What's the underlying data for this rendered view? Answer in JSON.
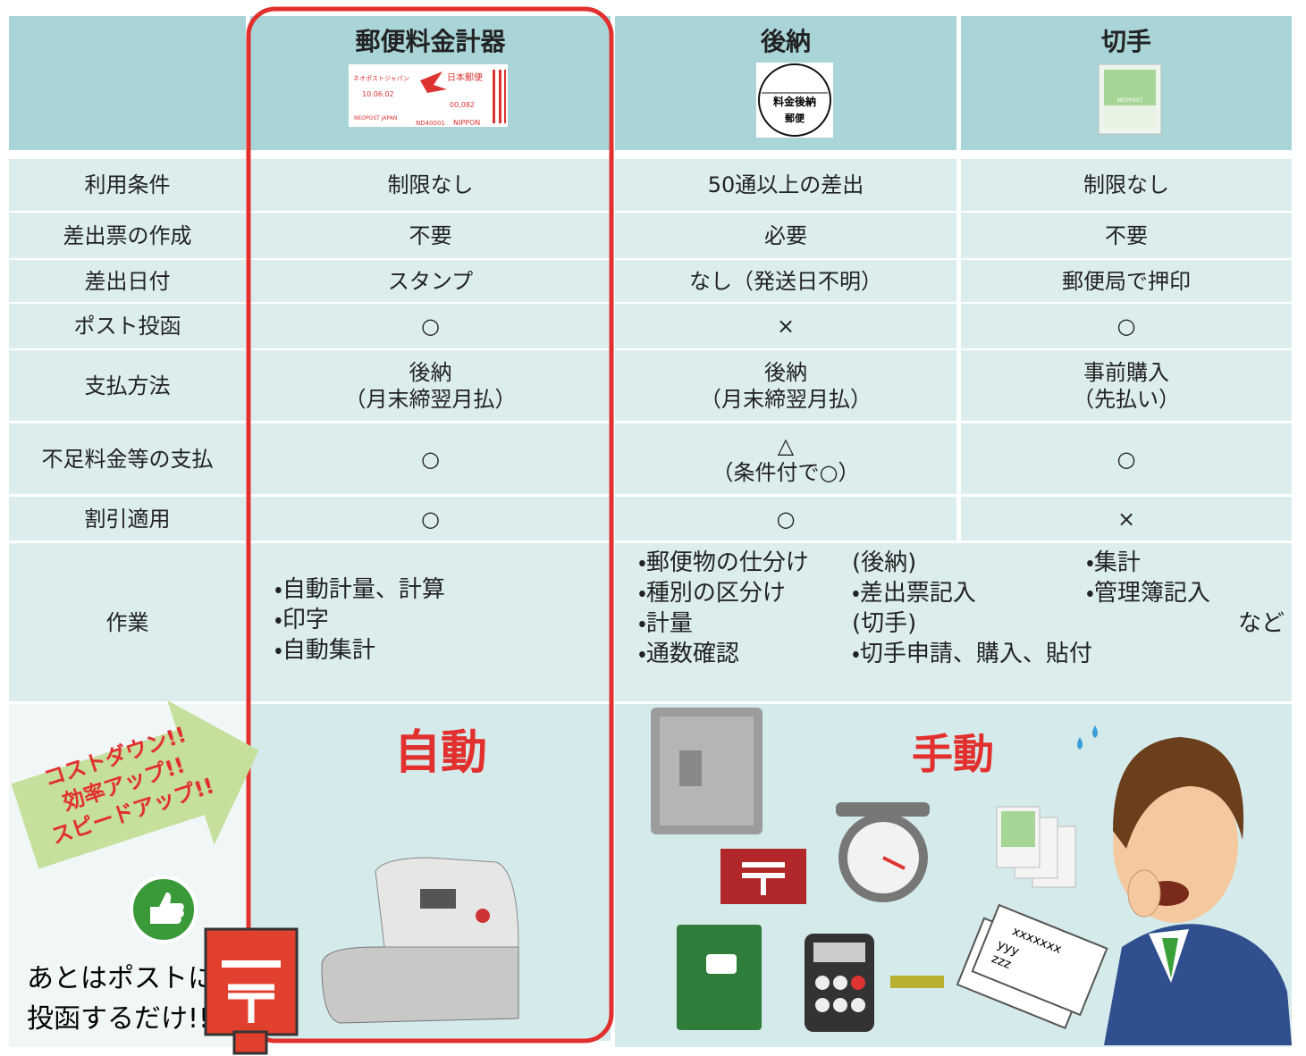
{
  "header": {
    "columns": [
      "郵便料金計器",
      "後納",
      "切手"
    ],
    "meter_stamp": [
      "ネオポストジャパン",
      "10.06.02",
      "日本郵便",
      "00,082",
      "NEOPOST JAPAN",
      "ND40001",
      "NIPPON"
    ],
    "gonou_stamp": [
      "料金後納",
      "郵便"
    ],
    "stamp_brand": "NEOPOST"
  },
  "table": {
    "rows": [
      {
        "label": "利用条件",
        "cells": [
          [
            "制限なし"
          ],
          [
            "50通以上の差出"
          ],
          [
            "制限なし"
          ]
        ]
      },
      {
        "label": "差出票の作成",
        "cells": [
          [
            "不要"
          ],
          [
            "必要"
          ],
          [
            "不要"
          ]
        ]
      },
      {
        "label": "差出日付",
        "cells": [
          [
            "スタンプ"
          ],
          [
            "なし（発送日不明）"
          ],
          [
            "郵便局で押印"
          ]
        ]
      },
      {
        "label": "ポスト投函",
        "cells": [
          [
            "○"
          ],
          [
            "×"
          ],
          [
            "○"
          ]
        ]
      },
      {
        "label": "支払方法",
        "cells": [
          [
            "後納",
            "（月末締翌月払）"
          ],
          [
            "後納",
            "（月末締翌月払）"
          ],
          [
            "事前購入",
            "（先払い）"
          ]
        ]
      },
      {
        "label": "不足料金等の支払",
        "cells": [
          [
            "○"
          ],
          [
            "△",
            "（条件付で○）"
          ],
          [
            "○"
          ]
        ]
      },
      {
        "label": "割引適用",
        "cells": [
          [
            "○"
          ],
          [
            "○"
          ],
          [
            "×"
          ]
        ]
      }
    ]
  },
  "work": {
    "label": "作業",
    "meter": [
      "・自動計量、計算",
      "・印字",
      "・自動集計"
    ],
    "manual_blocks": [
      [
        "・郵便物の仕分け",
        "・種別の区分け",
        "・計量",
        "・通数確認"
      ],
      [
        "(後納)",
        "・差出票記入",
        "(切手)",
        "・切手申請、購入、貼付"
      ],
      [
        "・集計",
        "・管理簿記入"
      ]
    ],
    "etc": "など"
  },
  "bottom": {
    "auto": "自動",
    "manual": "手動",
    "slogan": [
      "コストダウン!!",
      "効率アップ!!",
      "スピードアップ!!"
    ],
    "note": [
      "あとはポストに",
      "投函するだけ!!"
    ],
    "envelope": [
      "xxxxxxx",
      "yyy",
      "zzz"
    ]
  }
}
